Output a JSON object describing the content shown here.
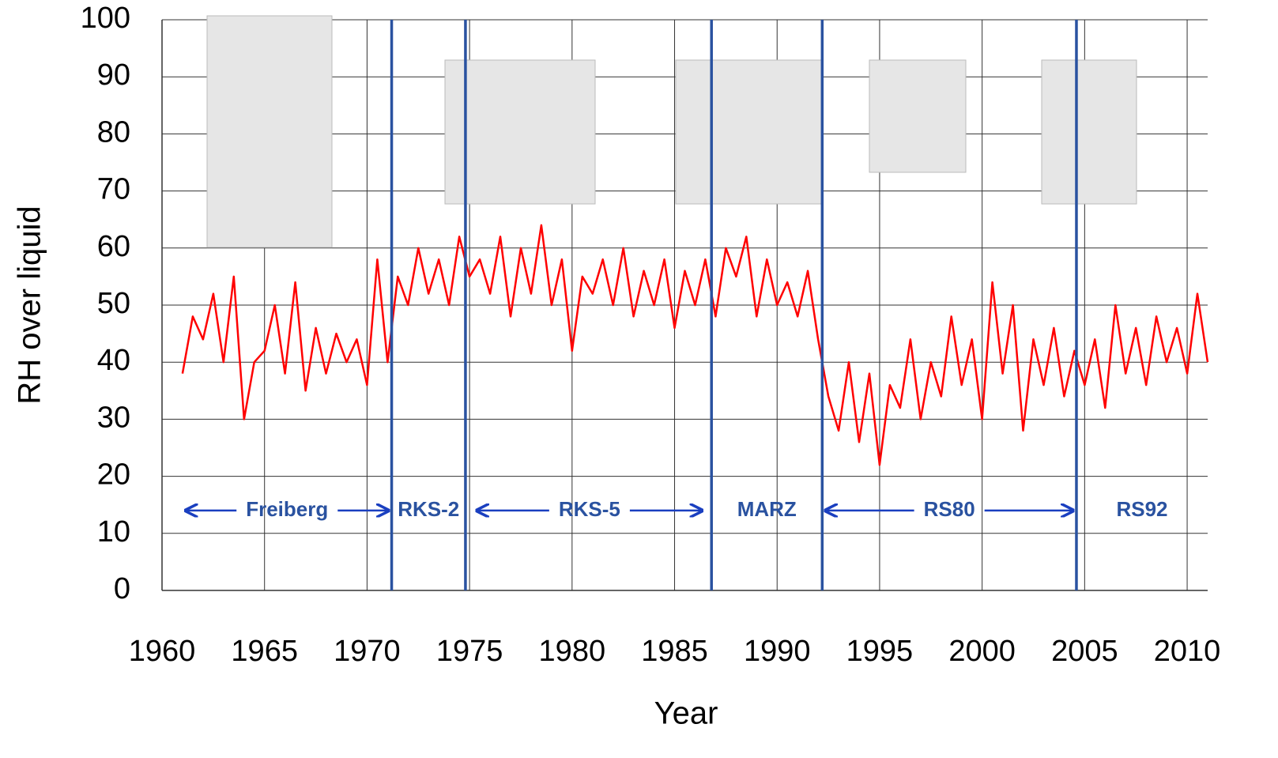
{
  "chart_data": {
    "type": "line",
    "x_label": "Year",
    "y_label": "RH over liquid",
    "xlim": [
      1960,
      2011
    ],
    "xticks": [
      1960,
      1965,
      1970,
      1975,
      1980,
      1985,
      1990,
      1995,
      2000,
      2005,
      2010
    ],
    "ylim": [
      0,
      100
    ],
    "yticks": [
      0,
      10,
      20,
      30,
      40,
      50,
      60,
      70,
      80,
      90,
      100
    ],
    "grid": true,
    "series": [
      {
        "color": "#ff0000",
        "x": [
          1961,
          1961.5,
          1962,
          1962.5,
          1963,
          1963.5,
          1964,
          1964.5,
          1965,
          1965.5,
          1966,
          1966.5,
          1967,
          1967.5,
          1968,
          1968.5,
          1969,
          1969.5,
          1970,
          1970.5,
          1971,
          1971.5,
          1972,
          1972.5,
          1973,
          1973.5,
          1974,
          1974.5,
          1975,
          1975.5,
          1976,
          1976.5,
          1977,
          1977.5,
          1978,
          1978.5,
          1979,
          1979.5,
          1980,
          1980.5,
          1981,
          1981.5,
          1982,
          1982.5,
          1983,
          1983.5,
          1984,
          1984.5,
          1985,
          1985.5,
          1986,
          1986.5,
          1987,
          1987.5,
          1988,
          1988.5,
          1989,
          1989.5,
          1990,
          1990.5,
          1991,
          1991.5,
          1992,
          1992.5,
          1993,
          1993.5,
          1994,
          1994.5,
          1995,
          1995.5,
          1996,
          1996.5,
          1997,
          1997.5,
          1998,
          1998.5,
          1999,
          1999.5,
          2000,
          2000.5,
          2001,
          2001.5,
          2002,
          2002.5,
          2003,
          2003.5,
          2004,
          2004.5,
          2005,
          2005.5,
          2006,
          2006.5,
          2007,
          2007.5,
          2008,
          2008.5,
          2009,
          2009.5,
          2010,
          2010.5,
          2011
        ],
        "values": [
          38,
          48,
          44,
          52,
          40,
          55,
          30,
          40,
          42,
          50,
          38,
          54,
          35,
          46,
          38,
          45,
          40,
          44,
          36,
          58,
          40,
          55,
          50,
          60,
          52,
          58,
          50,
          62,
          55,
          58,
          52,
          62,
          48,
          60,
          52,
          64,
          50,
          58,
          42,
          55,
          52,
          58,
          50,
          60,
          48,
          56,
          50,
          58,
          46,
          56,
          50,
          58,
          48,
          60,
          55,
          62,
          48,
          58,
          50,
          54,
          48,
          56,
          44,
          34,
          28,
          40,
          26,
          38,
          22,
          36,
          32,
          44,
          30,
          40,
          34,
          48,
          36,
          44,
          30,
          54,
          38,
          50,
          28,
          44,
          36,
          46,
          34,
          42,
          36,
          44,
          32,
          50,
          38,
          46,
          36,
          48,
          40,
          46,
          38,
          52,
          40
        ]
      }
    ],
    "transitions": [
      1971.2,
      1974.8,
      1986.8,
      1992.2,
      2004.6
    ],
    "transition_color": "#2a52a0",
    "instruments": [
      {
        "name": "Freiberg",
        "start": 1961,
        "end": 1971.2,
        "arrows": true
      },
      {
        "name": "RKS-2",
        "start": 1971.2,
        "end": 1974.8,
        "arrows": false
      },
      {
        "name": "RKS-5",
        "start": 1975.2,
        "end": 1986.5,
        "arrows": true
      },
      {
        "name": "MARZ",
        "start": 1986.8,
        "end": 1992.2,
        "arrows": false
      },
      {
        "name": "RS80",
        "start": 1992.2,
        "end": 2004.6,
        "arrows": true
      },
      {
        "name": "RS92",
        "start": 2004.6,
        "end": 2011,
        "arrows": false
      }
    ],
    "label_y": 14
  }
}
